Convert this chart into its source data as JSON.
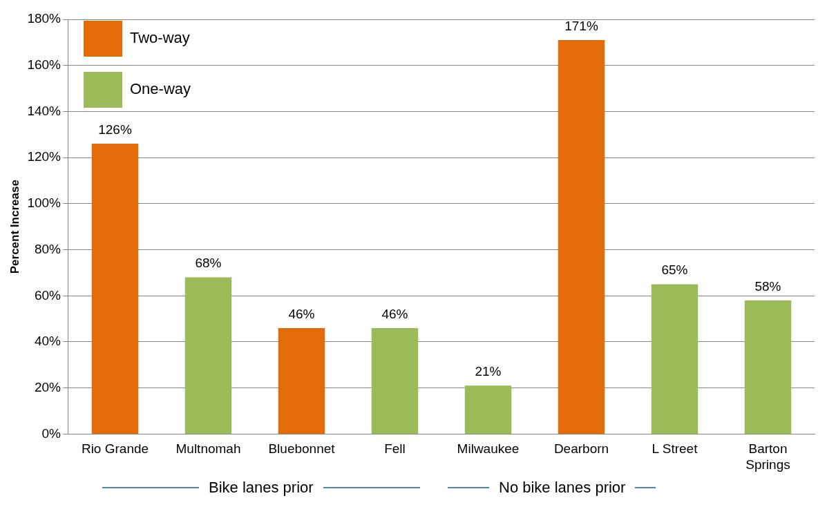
{
  "chart_data": {
    "type": "bar",
    "ylabel": "Percent Increase",
    "categories": [
      "Rio Grande",
      "Multnomah",
      "Bluebonnet",
      "Fell",
      "Milwaukee",
      "Dearborn",
      "L Street",
      "Barton Springs"
    ],
    "series": [
      {
        "name": "Two-way",
        "color": "#e36c0a",
        "values": [
          126,
          null,
          46,
          null,
          null,
          171,
          null,
          null
        ],
        "value_labels": [
          "126%",
          null,
          "46%",
          null,
          null,
          "171%",
          null,
          null
        ]
      },
      {
        "name": "One-way",
        "color": "#9bbb59",
        "values": [
          null,
          68,
          null,
          46,
          21,
          null,
          65,
          58
        ],
        "value_labels": [
          null,
          "68%",
          null,
          "46%",
          "21%",
          null,
          "65%",
          "58%"
        ]
      }
    ],
    "ylim": [
      0,
      180
    ],
    "yticks": [
      {
        "value": 0,
        "label": "0%"
      },
      {
        "value": 20,
        "label": "20%"
      },
      {
        "value": 40,
        "label": "40%"
      },
      {
        "value": 60,
        "label": "60%"
      },
      {
        "value": 80,
        "label": "80%"
      },
      {
        "value": 100,
        "label": "100%"
      },
      {
        "value": 120,
        "label": "120%"
      },
      {
        "value": 140,
        "label": "140%"
      },
      {
        "value": 160,
        "label": "160%"
      },
      {
        "value": 180,
        "label": "180%"
      }
    ],
    "grid": "y",
    "legend": "top left",
    "annotations": [
      "Bike lanes prior",
      "No bike lanes prior"
    ]
  }
}
